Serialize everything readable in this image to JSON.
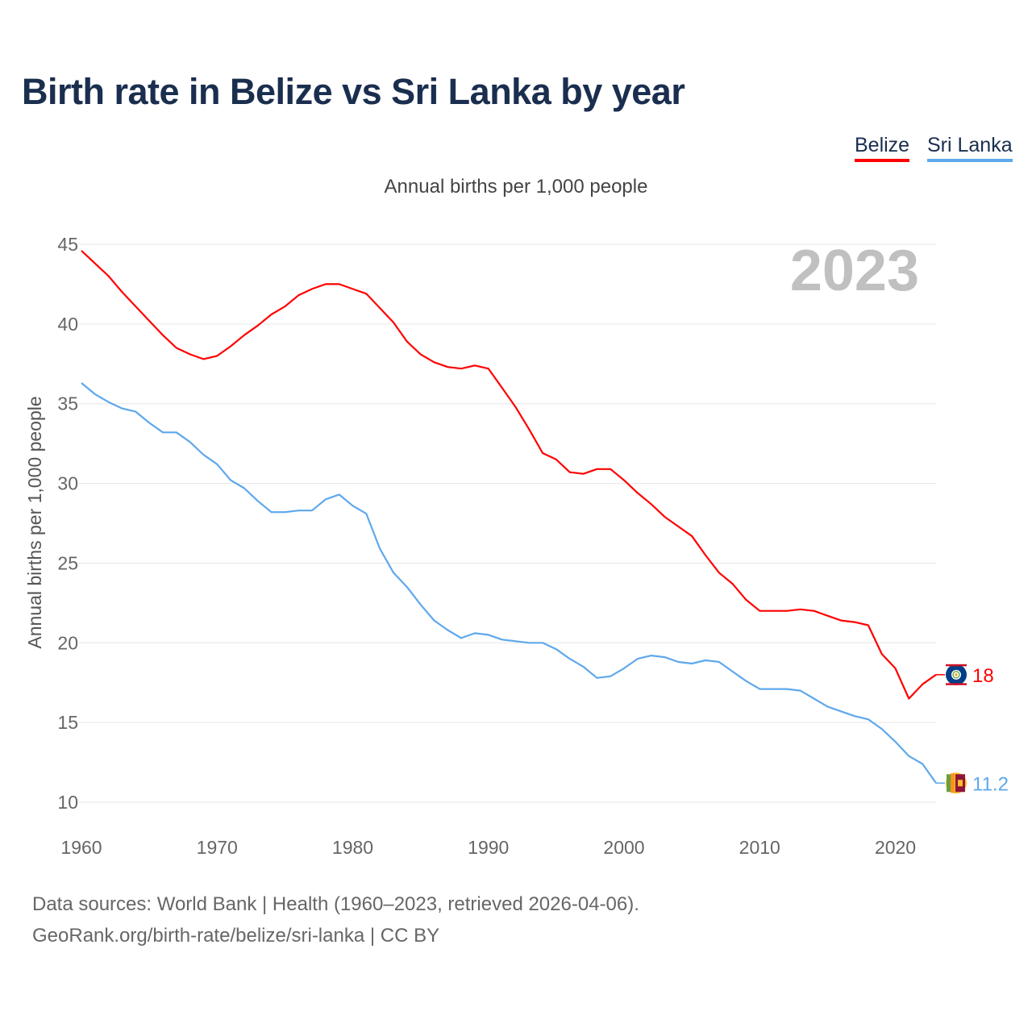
{
  "title": "Birth rate in Belize vs Sri Lanka by year",
  "subtitle": "Annual births per 1,000 people",
  "legend": [
    {
      "label": "Belize",
      "color": "#ff0000"
    },
    {
      "label": "Sri Lanka",
      "color": "#5ea8ec"
    }
  ],
  "year_watermark": "2023",
  "footer": {
    "line1": "Data sources: World Bank | Health (1960–2023, retrieved 2026-04-06).",
    "line2": "GeoRank.org/birth-rate/belize/sri-lanka | CC BY"
  },
  "chart_data": {
    "type": "line",
    "title": "Birth rate in Belize vs Sri Lanka by year",
    "xlabel": "",
    "ylabel": "Annual births per 1,000 people",
    "xlim": [
      1960,
      2023
    ],
    "ylim": [
      10,
      45
    ],
    "xticks": [
      1960,
      1970,
      1980,
      1990,
      2000,
      2010,
      2020
    ],
    "yticks": [
      10,
      15,
      20,
      25,
      30,
      35,
      40,
      45
    ],
    "grid": true,
    "legend_position": "top-right",
    "x_start": 1960,
    "series": [
      {
        "name": "Belize",
        "color": "#ff0000",
        "end_label": "18",
        "flag": "belize-flag",
        "values": [
          44.6,
          43.8,
          43.0,
          42.0,
          41.1,
          40.2,
          39.3,
          38.5,
          38.1,
          37.8,
          38.0,
          38.6,
          39.3,
          39.9,
          40.6,
          41.1,
          41.8,
          42.2,
          42.5,
          42.5,
          42.2,
          41.9,
          41.0,
          40.1,
          38.9,
          38.1,
          37.6,
          37.3,
          37.2,
          37.4,
          37.2,
          36.0,
          34.8,
          33.4,
          31.9,
          31.5,
          30.7,
          30.6,
          30.9,
          30.9,
          30.2,
          29.4,
          28.7,
          27.9,
          27.3,
          26.7,
          25.5,
          24.4,
          23.7,
          22.7,
          22.0,
          22.0,
          22.0,
          22.1,
          22.0,
          21.7,
          21.4,
          21.3,
          21.1,
          19.3,
          18.4,
          16.5,
          17.4,
          18.0
        ]
      },
      {
        "name": "Sri Lanka",
        "color": "#5ea8ec",
        "end_label": "11.2",
        "flag": "sri-lanka-flag",
        "values": [
          36.3,
          35.6,
          35.1,
          34.7,
          34.5,
          33.8,
          33.2,
          33.2,
          32.6,
          31.8,
          31.2,
          30.2,
          29.7,
          28.9,
          28.2,
          28.2,
          28.3,
          28.3,
          29.0,
          29.3,
          28.6,
          28.1,
          25.9,
          24.4,
          23.5,
          22.4,
          21.4,
          20.8,
          20.3,
          20.6,
          20.5,
          20.2,
          20.1,
          20.0,
          20.0,
          19.6,
          19.0,
          18.5,
          17.8,
          17.9,
          18.4,
          19.0,
          19.2,
          19.1,
          18.8,
          18.7,
          18.9,
          18.8,
          18.2,
          17.6,
          17.1,
          17.1,
          17.1,
          17.0,
          16.5,
          16.0,
          15.7,
          15.4,
          15.2,
          14.6,
          13.8,
          12.9,
          12.4,
          11.2
        ]
      }
    ]
  }
}
